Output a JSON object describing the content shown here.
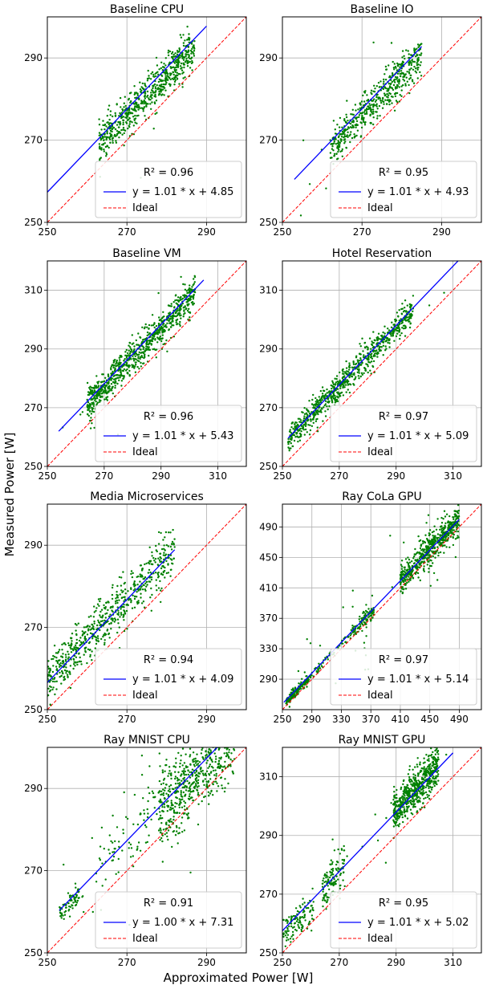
{
  "figure": {
    "xlabel": "Approximated Power [W]",
    "ylabel": "Measured Power [W]"
  },
  "colors": {
    "points": "#008000",
    "fit": "#0000ff",
    "ideal": "#ff0000",
    "grid": "#b0b0b0"
  },
  "chart_data": [
    {
      "type": "scatter",
      "title": "Baseline CPU",
      "xlim": [
        250,
        300
      ],
      "ylim": [
        250,
        300
      ],
      "xticks": [
        250,
        270,
        290
      ],
      "yticks": [
        250,
        270,
        290
      ],
      "legend_loc": "lower-right",
      "r2_label": "R² = 0.96",
      "series": [
        {
          "name": "y = 1.01 * x + 4.85",
          "kind": "fit",
          "slope": 1.01,
          "intercept": 4.85,
          "x_range": [
            250,
            290
          ]
        },
        {
          "name": "Ideal",
          "kind": "ideal"
        },
        {
          "kind": "points",
          "clusters": [
            {
              "x": [
                263,
                287
              ],
              "offset": 5.8,
              "spread": 2.3,
              "n": 650
            },
            {
              "x": [
                252,
                288
              ],
              "offset": 6,
              "spread": 9,
              "n": 14
            }
          ]
        }
      ]
    },
    {
      "type": "scatter",
      "title": "Baseline IO",
      "xlim": [
        250,
        300
      ],
      "ylim": [
        250,
        300
      ],
      "xticks": [
        250,
        270,
        290
      ],
      "yticks": [
        250,
        270,
        290
      ],
      "legend_loc": "lower-right",
      "r2_label": "R² = 0.95",
      "series": [
        {
          "name": "y = 1.01 * x + 4.93",
          "kind": "fit",
          "slope": 1.01,
          "intercept": 4.93,
          "x_range": [
            253,
            285
          ]
        },
        {
          "name": "Ideal",
          "kind": "ideal"
        },
        {
          "kind": "points",
          "clusters": [
            {
              "x": [
                262,
                285
              ],
              "offset": 5.8,
              "spread": 2.4,
              "n": 520
            },
            {
              "x": [
                253,
                285
              ],
              "offset": 5,
              "spread": 7,
              "n": 16
            }
          ]
        }
      ]
    },
    {
      "type": "scatter",
      "title": "Baseline VM",
      "xlim": [
        250,
        320
      ],
      "ylim": [
        250,
        320
      ],
      "xticks": [
        250,
        270,
        290,
        310
      ],
      "yticks": [
        250,
        270,
        290,
        310
      ],
      "legend_loc": "lower-right",
      "r2_label": "R² = 0.96",
      "series": [
        {
          "name": "y = 1.01 * x + 5.43",
          "kind": "fit",
          "slope": 1.01,
          "intercept": 5.43,
          "x_range": [
            254,
            305
          ]
        },
        {
          "name": "Ideal",
          "kind": "ideal"
        },
        {
          "kind": "points",
          "clusters": [
            {
              "x": [
                264,
                302
              ],
              "offset": 7,
              "spread": 2.8,
              "n": 800
            },
            {
              "x": [
                255,
                302
              ],
              "offset": 7,
              "spread": 7,
              "n": 20
            }
          ]
        }
      ]
    },
    {
      "type": "scatter",
      "title": "Hotel Reservation",
      "xlim": [
        250,
        320
      ],
      "ylim": [
        250,
        320
      ],
      "xticks": [
        250,
        270,
        290,
        310
      ],
      "yticks": [
        250,
        270,
        290,
        310
      ],
      "legend_loc": "lower-right",
      "r2_label": "R² = 0.97",
      "series": [
        {
          "name": "y = 1.01 * x + 5.09",
          "kind": "fit",
          "slope": 1.01,
          "intercept": 5.09,
          "x_range": [
            252,
            314
          ]
        },
        {
          "name": "Ideal",
          "kind": "ideal"
        },
        {
          "kind": "points",
          "clusters": [
            {
              "x": [
                252,
                296
              ],
              "offset": 7.3,
              "spread": 2.3,
              "n": 800
            },
            {
              "x": [
                260,
                312
              ],
              "offset": 6,
              "spread": 6,
              "n": 10
            }
          ]
        }
      ]
    },
    {
      "type": "scatter",
      "title": "Media Microservices",
      "xlim": [
        250,
        300
      ],
      "ylim": [
        250,
        300
      ],
      "xticks": [
        250,
        270,
        290
      ],
      "yticks": [
        250,
        270,
        290
      ],
      "legend_loc": "lower-right",
      "r2_label": "R² = 0.94",
      "series": [
        {
          "name": "y = 1.01 * x + 4.09",
          "kind": "fit",
          "slope": 1.01,
          "intercept": 4.09,
          "x_range": [
            250,
            282
          ]
        },
        {
          "name": "Ideal",
          "kind": "ideal"
        },
        {
          "kind": "points",
          "clusters": [
            {
              "x": [
                250,
                282
              ],
              "offset": 7,
              "spread": 3,
              "n": 620
            },
            {
              "x": [
                254,
                282
              ],
              "offset": 9,
              "spread": 6,
              "n": 16
            }
          ]
        }
      ]
    },
    {
      "type": "scatter",
      "title": "Ray CoLa GPU",
      "xlim": [
        250,
        520
      ],
      "ylim": [
        250,
        520
      ],
      "xticks": [
        250,
        290,
        330,
        370,
        410,
        450,
        490
      ],
      "yticks": [
        290,
        330,
        370,
        410,
        450,
        490
      ],
      "legend_loc": "lower-right",
      "r2_label": "R² = 0.97",
      "series": [
        {
          "name": "y = 1.01 * x + 5.14",
          "kind": "fit",
          "slope": 1.01,
          "intercept": 5.14,
          "x_range": [
            252,
            490
          ]
        },
        {
          "name": "Ideal",
          "kind": "ideal"
        },
        {
          "kind": "points",
          "clusters": [
            {
              "x": [
                255,
                285
              ],
              "offset": 5,
              "spread": 3.5,
              "n": 140
            },
            {
              "x": [
                285,
                345
              ],
              "offset": 6,
              "spread": 3,
              "n": 60
            },
            {
              "x": [
                345,
                375
              ],
              "offset": 7,
              "spread": 5,
              "n": 100
            },
            {
              "x": [
                410,
                490
              ],
              "offset": 10,
              "spread": 10,
              "n": 600
            },
            {
              "x": [
                260,
                490
              ],
              "offset": 10,
              "spread": 40,
              "n": 45
            }
          ]
        }
      ]
    },
    {
      "type": "scatter",
      "title": "Ray MNIST CPU",
      "xlim": [
        250,
        300
      ],
      "ylim": [
        250,
        300
      ],
      "xticks": [
        250,
        270,
        290
      ],
      "yticks": [
        250,
        270,
        290
      ],
      "legend_loc": "lower-right",
      "r2_label": "R² = 0.91",
      "series": [
        {
          "name": "y = 1.00 * x + 7.31",
          "kind": "fit",
          "slope": 1.0,
          "intercept": 7.31,
          "x_range": [
            253,
            297
          ]
        },
        {
          "name": "Ideal",
          "kind": "ideal"
        },
        {
          "kind": "points",
          "clusters": [
            {
              "x": [
                253,
                258
              ],
              "offset": 6.5,
              "spread": 1.2,
              "n": 70
            },
            {
              "x": [
                262,
                280
              ],
              "offset": 8,
              "spread": 4.5,
              "n": 90
            },
            {
              "x": [
                278,
                297
              ],
              "offset": 6,
              "spread": 5,
              "n": 600
            },
            {
              "x": [
                253,
                296
              ],
              "offset": 10,
              "spread": 9,
              "n": 35
            }
          ]
        }
      ]
    },
    {
      "type": "scatter",
      "title": "Ray MNIST GPU",
      "xlim": [
        250,
        320
      ],
      "ylim": [
        250,
        320
      ],
      "xticks": [
        250,
        270,
        290,
        310
      ],
      "yticks": [
        250,
        270,
        290,
        310
      ],
      "legend_loc": "lower-right",
      "r2_label": "R² = 0.95",
      "series": [
        {
          "name": "y = 1.01 * x + 5.02",
          "kind": "fit",
          "slope": 1.01,
          "intercept": 5.02,
          "x_range": [
            250,
            310
          ]
        },
        {
          "name": "Ideal",
          "kind": "ideal"
        },
        {
          "kind": "points",
          "clusters": [
            {
              "x": [
                250,
                261
              ],
              "offset": 5.5,
              "spread": 2.8,
              "n": 120
            },
            {
              "x": [
                264,
                272
              ],
              "offset": 7,
              "spread": 3.5,
              "n": 120
            },
            {
              "x": [
                289,
                305
              ],
              "offset": 9,
              "spread": 3.5,
              "n": 600
            },
            {
              "x": [
                252,
                308
              ],
              "offset": 8,
              "spread": 8,
              "n": 18
            }
          ]
        }
      ]
    }
  ]
}
